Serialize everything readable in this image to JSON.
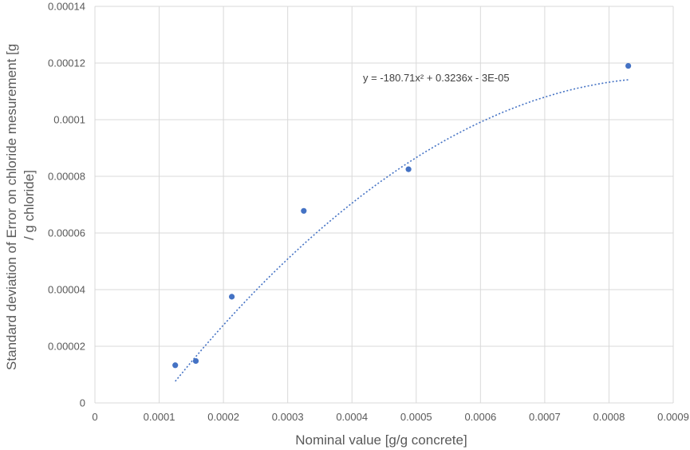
{
  "chart_data": {
    "type": "scatter",
    "title": "",
    "xlabel": "Nominal value [g/g concrete]",
    "ylabel_lines": [
      "Standard deviation of Error on chloride mesurement [g",
      "/ g chloride]"
    ],
    "xlim": [
      0,
      0.0009
    ],
    "ylim": [
      0,
      0.00014
    ],
    "x_ticks": [
      "0",
      "0.0001",
      "0.0002",
      "0.0003",
      "0.0004",
      "0.0005",
      "0.0006",
      "0.0007",
      "0.0008",
      "0.0009"
    ],
    "y_ticks": [
      "0",
      "0.00002",
      "0.00004",
      "0.00006",
      "0.00008",
      "0.0001",
      "0.00012",
      "0.00014"
    ],
    "grid": true,
    "series": [
      {
        "points": [
          {
            "x": 0.000125,
            "y": 1.33e-05
          },
          {
            "x": 0.000157,
            "y": 1.48e-05
          },
          {
            "x": 0.000213,
            "y": 3.75e-05
          },
          {
            "x": 0.000325,
            "y": 6.78e-05
          },
          {
            "x": 0.000488,
            "y": 8.25e-05
          },
          {
            "x": 0.00083,
            "y": 0.000119
          }
        ],
        "color": "#4472c4"
      }
    ],
    "trendline": {
      "type": "polynomial-2",
      "equation": "y = -180.71x² + 0.3236x - 3E-05",
      "x_range": [
        0.000125,
        0.00083
      ],
      "color": "#4472c4"
    }
  }
}
